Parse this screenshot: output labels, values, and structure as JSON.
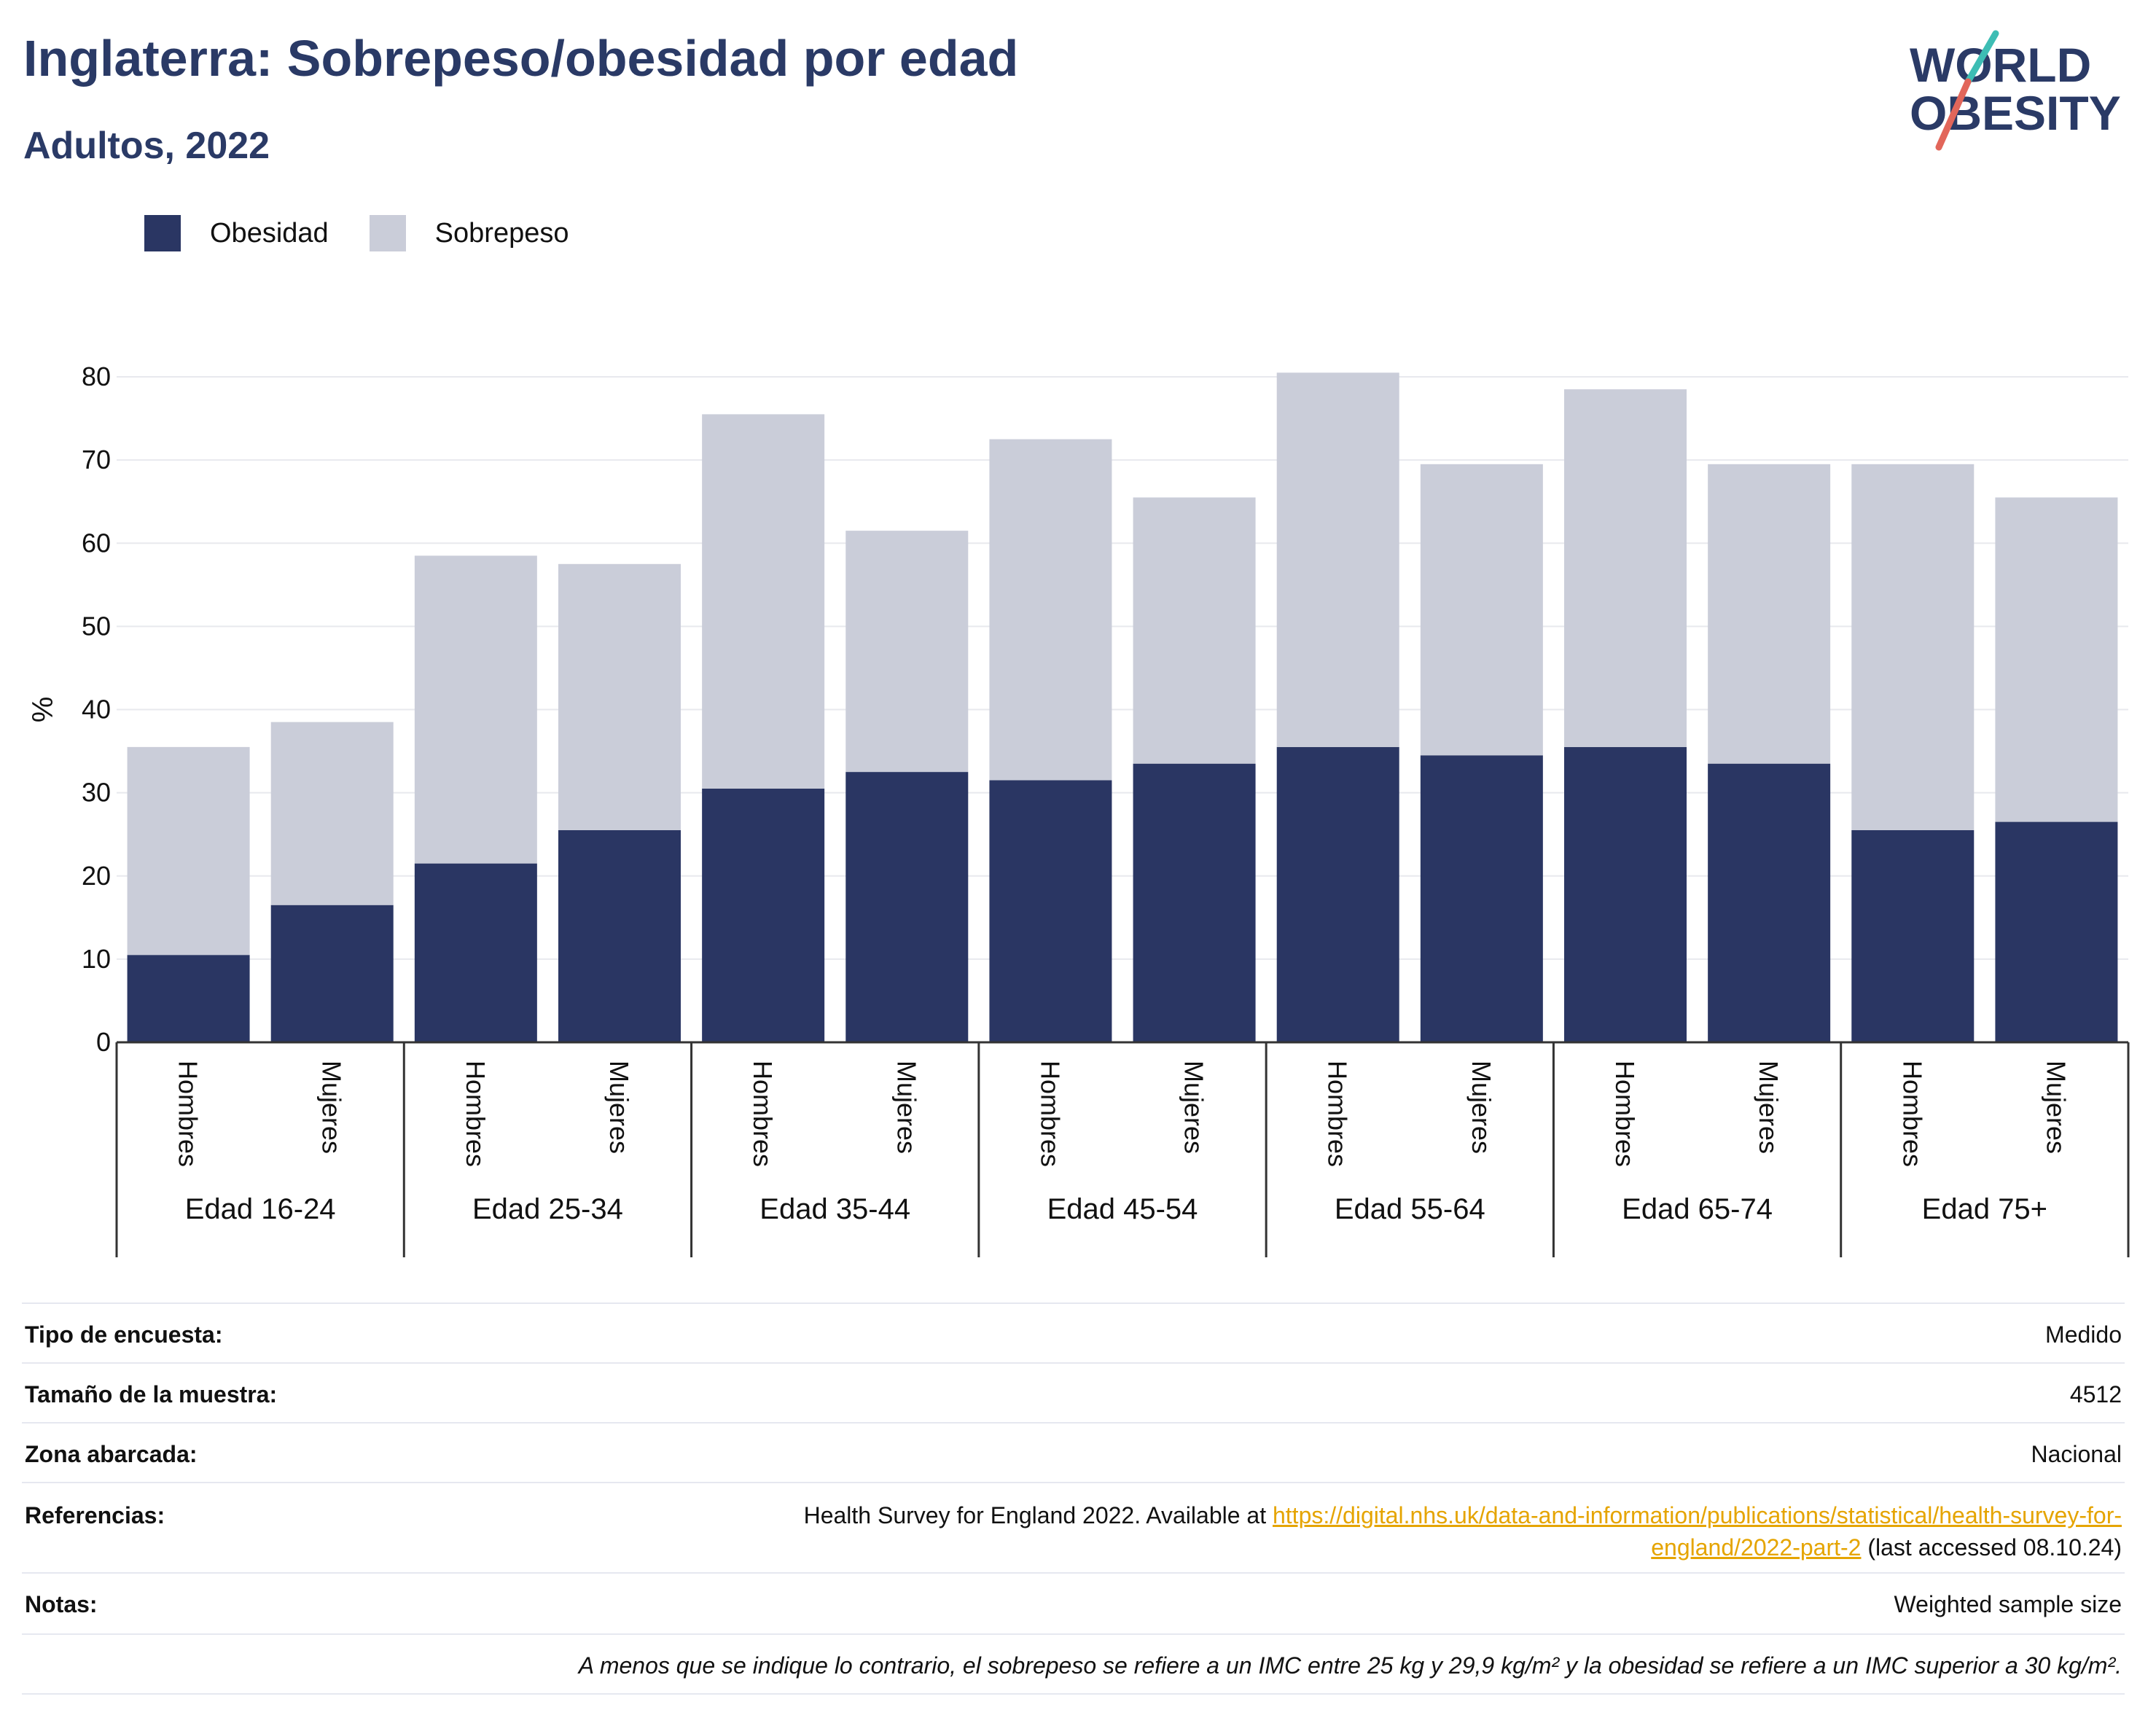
{
  "header": {
    "title": "Inglaterra: Sobrepeso/obesidad por edad",
    "subtitle": "Adultos, 2022"
  },
  "logo": {
    "line1": "WORLD",
    "line2": "OBESITY",
    "colors": {
      "text": "#2a3a66",
      "slash_top": "#3dbdb4",
      "slash_bottom": "#e2665a"
    }
  },
  "legend": [
    {
      "label": "Obesidad",
      "color": "#2a3663"
    },
    {
      "label": "Sobrepeso",
      "color": "#cacdd9"
    }
  ],
  "chart_data": {
    "type": "bar",
    "stacked": true,
    "ylabel": "%",
    "ylim": [
      0,
      80
    ],
    "yticks": [
      0,
      10,
      20,
      30,
      40,
      50,
      60,
      70,
      80
    ],
    "grid": true,
    "legend_position": "top-left",
    "groups": [
      "Edad 16-24",
      "Edad 25-34",
      "Edad 35-44",
      "Edad 45-54",
      "Edad 55-64",
      "Edad 65-74",
      "Edad 75+"
    ],
    "categories": [
      "Hombres",
      "Mujeres",
      "Hombres",
      "Mujeres",
      "Hombres",
      "Mujeres",
      "Hombres",
      "Mujeres",
      "Hombres",
      "Mujeres",
      "Hombres",
      "Mujeres",
      "Hombres",
      "Mujeres"
    ],
    "series": [
      {
        "name": "Obesidad",
        "color": "#2a3663",
        "values": [
          10.5,
          16.5,
          21.5,
          25.5,
          30.5,
          32.5,
          31.5,
          33.5,
          35.5,
          34.5,
          35.5,
          33.5,
          25.5,
          26.5
        ]
      },
      {
        "name": "Sobrepeso",
        "color": "#cacdd9",
        "values": [
          25,
          22,
          37,
          32,
          45,
          29,
          41,
          32,
          45,
          35,
          43,
          36,
          44,
          39
        ]
      }
    ]
  },
  "info": {
    "survey_type": {
      "label": "Tipo de encuesta:",
      "value": "Medido"
    },
    "sample_size": {
      "label": "Tamaño de la muestra:",
      "value": "4512"
    },
    "coverage": {
      "label": "Zona abarcada:",
      "value": "Nacional"
    },
    "references": {
      "label": "Referencias:",
      "text_before": "Health Survey for England 2022. Available at ",
      "link_line1": "https://digital.nhs.uk/data-and-information/publications/statistical/health-survey-for-",
      "link_line2": "england/2022-part-2",
      "text_after": " (last accessed 08.10.24)"
    },
    "notes": {
      "label": "Notas:",
      "value": "Weighted sample size"
    },
    "footnote": "A menos que se indique lo contrario, el sobrepeso se refiere a un IMC entre 25 kg y 29,9 kg/m² y la obesidad se refiere a un IMC superior a 30 kg/m²."
  }
}
